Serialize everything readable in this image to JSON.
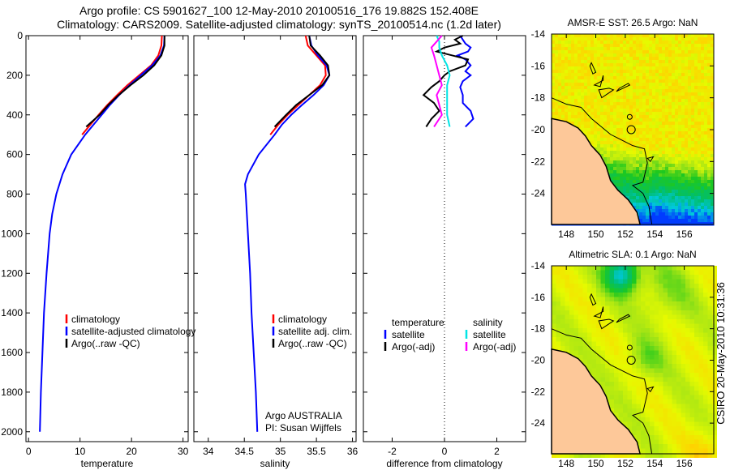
{
  "header": {
    "title_line1": "Argo profile: CS 5901627_100 12-May-2010 20100516_176 19.882S 152.408E",
    "title_line2": "Climatology: CARS2009. Satellite-adjusted climatology: synTS_20100514.nc (1.2d later)"
  },
  "colors": {
    "climatology": "#ff0000",
    "satellite": "#0000ff",
    "argo": "#000000",
    "sal_satellite": "#00e5e5",
    "sal_argo": "#ff00ff"
  },
  "chart_data": [
    {
      "type": "line",
      "xlabel": "temperature",
      "ylabel": "",
      "xlim": [
        -0.5,
        31
      ],
      "ylim": [
        2050,
        0
      ],
      "xticks": [
        "0",
        "10",
        "20",
        "30"
      ],
      "xtick_values": [
        0,
        10,
        20,
        30
      ],
      "yticks": [
        "0",
        "200",
        "400",
        "600",
        "800",
        "1000",
        "1200",
        "1400",
        "1600",
        "1800",
        "2000"
      ],
      "ytick_values": [
        0,
        200,
        400,
        600,
        800,
        1000,
        1200,
        1400,
        1600,
        1800,
        2000
      ],
      "legend": [
        "climatology",
        "satellite-adjusted climatology",
        "Argo(..raw -QC)"
      ],
      "series": [
        {
          "name": "climatology",
          "color_key": "climatology",
          "depth": [
            0,
            50,
            100,
            150,
            200,
            250,
            300,
            350,
            400,
            450,
            500
          ],
          "values": [
            25.9,
            25.8,
            25.2,
            23.8,
            21.5,
            19.2,
            17.2,
            15.3,
            13.6,
            12,
            10.4
          ]
        },
        {
          "name": "satellite-adjusted climatology",
          "color_key": "satellite",
          "depth": [
            0,
            50,
            100,
            150,
            200,
            250,
            300,
            350,
            400,
            450,
            500,
            600,
            700,
            800,
            900,
            1000,
            1200,
            1400,
            1600,
            1800,
            2000
          ],
          "values": [
            26.4,
            26.3,
            25.6,
            24,
            21.8,
            19.6,
            17.6,
            15.8,
            14.2,
            12.6,
            11,
            8.3,
            6.6,
            5.4,
            4.6,
            4.1,
            3.5,
            3.0,
            2.7,
            2.4,
            2.2
          ]
        },
        {
          "name": "Argo(..raw -QC)",
          "color_key": "argo",
          "depth": [
            0,
            50,
            100,
            150,
            200,
            250,
            300,
            350,
            400,
            460
          ],
          "values": [
            26.4,
            26.4,
            25.8,
            24.4,
            22.3,
            19.8,
            17.5,
            15.5,
            13.8,
            11.2
          ]
        }
      ]
    },
    {
      "type": "line",
      "xlabel": "salinity",
      "xlim": [
        33.8,
        36.05
      ],
      "ylim": [
        2050,
        0
      ],
      "xticks": [
        "34",
        "34.5",
        "35",
        "35.5",
        "36"
      ],
      "xtick_values": [
        34,
        34.5,
        35,
        35.5,
        36
      ],
      "legend": [
        "climatology",
        "satellite adj. clim.",
        "Argo(..raw -QC)"
      ],
      "annotation": [
        "Argo AUSTRALIA",
        "PI: Susan Wijffels"
      ],
      "series": [
        {
          "name": "climatology",
          "color_key": "climatology",
          "depth": [
            0,
            50,
            100,
            150,
            200,
            250,
            300,
            350,
            400,
            450,
            500
          ],
          "values": [
            35.35,
            35.38,
            35.5,
            35.62,
            35.63,
            35.55,
            35.4,
            35.25,
            35.1,
            34.97,
            34.86
          ]
        },
        {
          "name": "satellite adj. clim.",
          "color_key": "satellite",
          "depth": [
            0,
            50,
            100,
            150,
            200,
            250,
            300,
            350,
            400,
            450,
            500,
            600,
            700,
            750,
            800,
            1000,
            1200,
            1400,
            1600,
            1800,
            2000
          ],
          "values": [
            35.4,
            35.43,
            35.52,
            35.64,
            35.68,
            35.6,
            35.46,
            35.3,
            35.15,
            35.02,
            34.92,
            34.7,
            34.55,
            34.51,
            34.52,
            34.55,
            34.58,
            34.6,
            34.63,
            34.66,
            34.68
          ]
        },
        {
          "name": "Argo(..raw -QC)",
          "color_key": "argo",
          "depth": [
            0,
            50,
            100,
            150,
            200,
            250,
            300,
            350,
            400,
            460
          ],
          "values": [
            35.4,
            35.42,
            35.55,
            35.66,
            35.68,
            35.58,
            35.4,
            35.22,
            35.08,
            34.92
          ]
        }
      ]
    },
    {
      "type": "line",
      "xlabel": "difference from climatology",
      "xlim": [
        -3.1,
        3.1
      ],
      "ylim": [
        2050,
        0
      ],
      "xticks": [
        "-2",
        "0",
        "2"
      ],
      "xtick_values": [
        -2,
        0,
        2
      ],
      "legend_temperature": {
        "heading": "temperature",
        "items": [
          "satellite",
          "Argo(-adj)"
        ]
      },
      "legend_salinity": {
        "heading": "salinity",
        "items": [
          "satellite",
          "Argo(-adj)"
        ]
      },
      "series": [
        {
          "name": "temperature satellite",
          "color_key": "satellite",
          "depth": [
            0,
            20,
            40,
            60,
            80,
            100,
            120,
            150,
            180,
            200,
            230,
            260,
            300,
            340,
            380,
            420,
            460
          ],
          "values": [
            0.6,
            0.7,
            0.8,
            1.0,
            0.9,
            0.5,
            0.8,
            1.0,
            0.8,
            1.0,
            0.7,
            0.6,
            0.7,
            0.7,
            1.0,
            1.1,
            0.8
          ]
        },
        {
          "name": "temperature Argo(-adj)",
          "color_key": "argo",
          "depth": [
            0,
            20,
            40,
            60,
            80,
            100,
            120,
            150,
            180,
            200,
            230,
            260,
            300,
            340,
            380,
            420,
            460
          ],
          "values": [
            0.7,
            0.4,
            0.6,
            0.0,
            -0.3,
            0.3,
            0.9,
            0.8,
            0.2,
            0.0,
            -0.2,
            -0.5,
            -0.8,
            -0.4,
            -0.2,
            -0.5,
            -0.7
          ]
        },
        {
          "name": "salinity satellite",
          "color_key": "sal_satellite",
          "depth": [
            0,
            30,
            60,
            100,
            150,
            200,
            250,
            300,
            350,
            400,
            460
          ],
          "values": [
            -0.3,
            -0.2,
            -0.2,
            -0.1,
            0.1,
            0.2,
            0.1,
            0.1,
            0.1,
            0.1,
            0.2
          ]
        },
        {
          "name": "salinity Argo(-adj)",
          "color_key": "sal_argo",
          "depth": [
            0,
            30,
            60,
            100,
            150,
            200,
            250,
            300,
            350,
            400,
            460
          ],
          "values": [
            -0.1,
            -0.3,
            -0.5,
            -0.4,
            -0.3,
            -0.2,
            -0.1,
            -0.3,
            -0.2,
            -0.1,
            -0.4
          ]
        }
      ]
    }
  ],
  "maps": [
    {
      "title": "AMSR-E SST: 26.5 Argo: NaN",
      "lon_ticks": [
        "148",
        "150",
        "152",
        "154",
        "156"
      ],
      "lat_ticks": [
        "-14",
        "-16",
        "-18",
        "-20",
        "-22",
        "-24"
      ]
    },
    {
      "title": "Altimetric SLA: 0.1 Argo: NaN",
      "lon_ticks": [
        "148",
        "150",
        "152",
        "154",
        "156"
      ],
      "lat_ticks": [
        "-14",
        "-16",
        "-18",
        "-20",
        "-22",
        "-24"
      ]
    }
  ],
  "footer": {
    "stamp": "CSIRO 20-May-2010 10:31:36"
  }
}
